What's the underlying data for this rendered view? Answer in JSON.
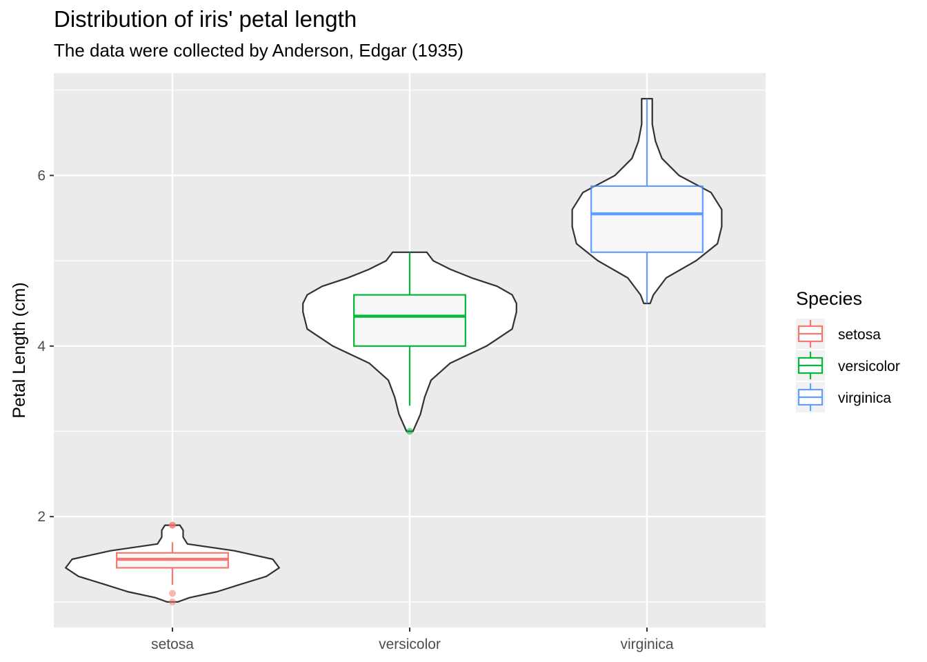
{
  "chart_data": {
    "type": "violin+box",
    "title": "Distribution of iris' petal length",
    "subtitle": "The data were collected by Anderson, Edgar (1935)",
    "xlabel": "",
    "ylabel": "Petal Length (cm)",
    "ylim": [
      0.7,
      7.2
    ],
    "yticks": [
      2,
      4,
      6
    ],
    "grid": true,
    "categories": [
      "setosa",
      "versicolor",
      "virginica"
    ],
    "legend": {
      "title": "Species",
      "position": "right",
      "entries": [
        "setosa",
        "versicolor",
        "virginica"
      ]
    },
    "series": [
      {
        "name": "setosa",
        "color": "#F8766D",
        "box": {
          "lower_whisker": 1.2,
          "q1": 1.4,
          "median": 1.5,
          "q3": 1.575,
          "upper_whisker": 1.7
        },
        "outliers": [
          1.0,
          1.1,
          1.9,
          1.9
        ],
        "violin": {
          "min": 1.0,
          "max": 1.9,
          "profile": [
            [
              1.0,
              0.05
            ],
            [
              1.05,
              0.16
            ],
            [
              1.12,
              0.42
            ],
            [
              1.2,
              0.62
            ],
            [
              1.3,
              0.88
            ],
            [
              1.4,
              1.0
            ],
            [
              1.5,
              0.94
            ],
            [
              1.6,
              0.58
            ],
            [
              1.68,
              0.14
            ],
            [
              1.76,
              0.1
            ],
            [
              1.84,
              0.1
            ],
            [
              1.9,
              0.07
            ]
          ]
        }
      },
      {
        "name": "versicolor",
        "color": "#00BA38",
        "box": {
          "lower_whisker": 3.3,
          "q1": 4.0,
          "median": 4.35,
          "q3": 4.6,
          "upper_whisker": 5.1
        },
        "outliers": [
          3.0
        ],
        "violin": {
          "min": 3.0,
          "max": 5.1,
          "profile": [
            [
              3.0,
              0.03
            ],
            [
              3.2,
              0.1
            ],
            [
              3.4,
              0.14
            ],
            [
              3.6,
              0.2
            ],
            [
              3.8,
              0.38
            ],
            [
              4.0,
              0.72
            ],
            [
              4.2,
              0.96
            ],
            [
              4.4,
              1.0
            ],
            [
              4.5,
              1.0
            ],
            [
              4.6,
              0.96
            ],
            [
              4.7,
              0.82
            ],
            [
              4.8,
              0.58
            ],
            [
              4.9,
              0.38
            ],
            [
              5.0,
              0.22
            ],
            [
              5.1,
              0.16
            ]
          ]
        }
      },
      {
        "name": "virginica",
        "color": "#619CFF",
        "box": {
          "lower_whisker": 4.5,
          "q1": 5.1,
          "median": 5.55,
          "q3": 5.875,
          "upper_whisker": 6.9
        },
        "outliers": [],
        "violin": {
          "min": 4.5,
          "max": 6.9,
          "profile": [
            [
              4.5,
              0.03
            ],
            [
              4.6,
              0.06
            ],
            [
              4.8,
              0.18
            ],
            [
              5.0,
              0.46
            ],
            [
              5.2,
              0.66
            ],
            [
              5.4,
              0.7
            ],
            [
              5.6,
              0.7
            ],
            [
              5.8,
              0.6
            ],
            [
              6.0,
              0.3
            ],
            [
              6.2,
              0.14
            ],
            [
              6.4,
              0.08
            ],
            [
              6.6,
              0.05
            ],
            [
              6.9,
              0.05
            ]
          ]
        }
      }
    ]
  }
}
